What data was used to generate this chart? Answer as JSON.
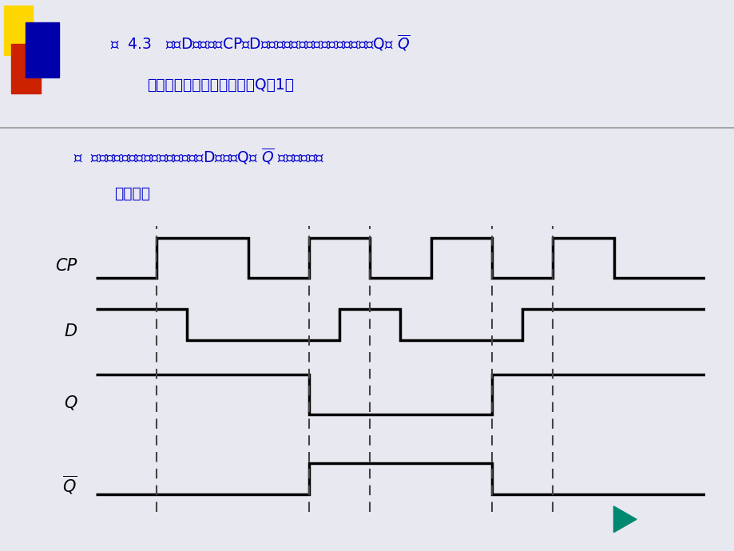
{
  "bg_color": "#e8e8f0",
  "text_color": "#0000cc",
  "waveform_color": "#000000",
  "dashed_color": "#444444",
  "cp_times": [
    0,
    2,
    2,
    5,
    5,
    7,
    7,
    9,
    9,
    11,
    11,
    13,
    13,
    15,
    15,
    17,
    17,
    20
  ],
  "cp_values": [
    0,
    0,
    1,
    1,
    0,
    0,
    1,
    1,
    0,
    0,
    1,
    1,
    0,
    0,
    1,
    1,
    0,
    0
  ],
  "d_times": [
    0,
    3,
    3,
    8,
    8,
    10,
    10,
    14,
    14,
    20
  ],
  "d_values": [
    1,
    1,
    0,
    0,
    1,
    1,
    0,
    0,
    1,
    1
  ],
  "q_times": [
    0,
    7,
    7,
    13,
    13,
    20
  ],
  "q_values": [
    1,
    1,
    0,
    0,
    1,
    1
  ],
  "qbar_times": [
    0,
    7,
    7,
    13,
    13,
    20
  ],
  "qbar_values": [
    0,
    0,
    1,
    1,
    0,
    0
  ],
  "dashed_x": [
    2,
    7,
    9,
    13,
    15
  ],
  "xmax": 20,
  "figsize": [
    9.2,
    6.9
  ],
  "dpi": 100,
  "slide_color_yellow": "#FFD700",
  "slide_color_red": "#CC2200",
  "slide_color_blue": "#0000AA",
  "teal_button_color": "#00C8A8",
  "teal_button_dark": "#008870"
}
